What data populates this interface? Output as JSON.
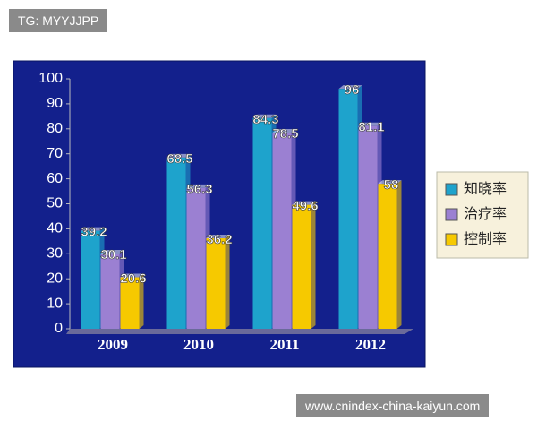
{
  "watermark_top": "TG: MYYJJPP",
  "watermark_bottom": "www.cnindex-china-kaiyun.com",
  "chart_data": {
    "type": "bar",
    "categories": [
      "2009",
      "2010",
      "2011",
      "2012"
    ],
    "series": [
      {
        "name": "知晓率",
        "color": "#1ea3cc",
        "values": [
          39.2,
          68.5,
          84.3,
          96
        ]
      },
      {
        "name": "治疗率",
        "color": "#9b80d2",
        "values": [
          30.1,
          56.3,
          78.5,
          81.1
        ]
      },
      {
        "name": "控制率",
        "color": "#f6c900",
        "values": [
          20.6,
          36.2,
          49.6,
          58
        ]
      }
    ],
    "ylim": [
      0,
      100
    ],
    "yticks": [
      0,
      10,
      20,
      30,
      40,
      50,
      60,
      70,
      80,
      90,
      100
    ],
    "legend": "right",
    "background": "#13208c"
  }
}
